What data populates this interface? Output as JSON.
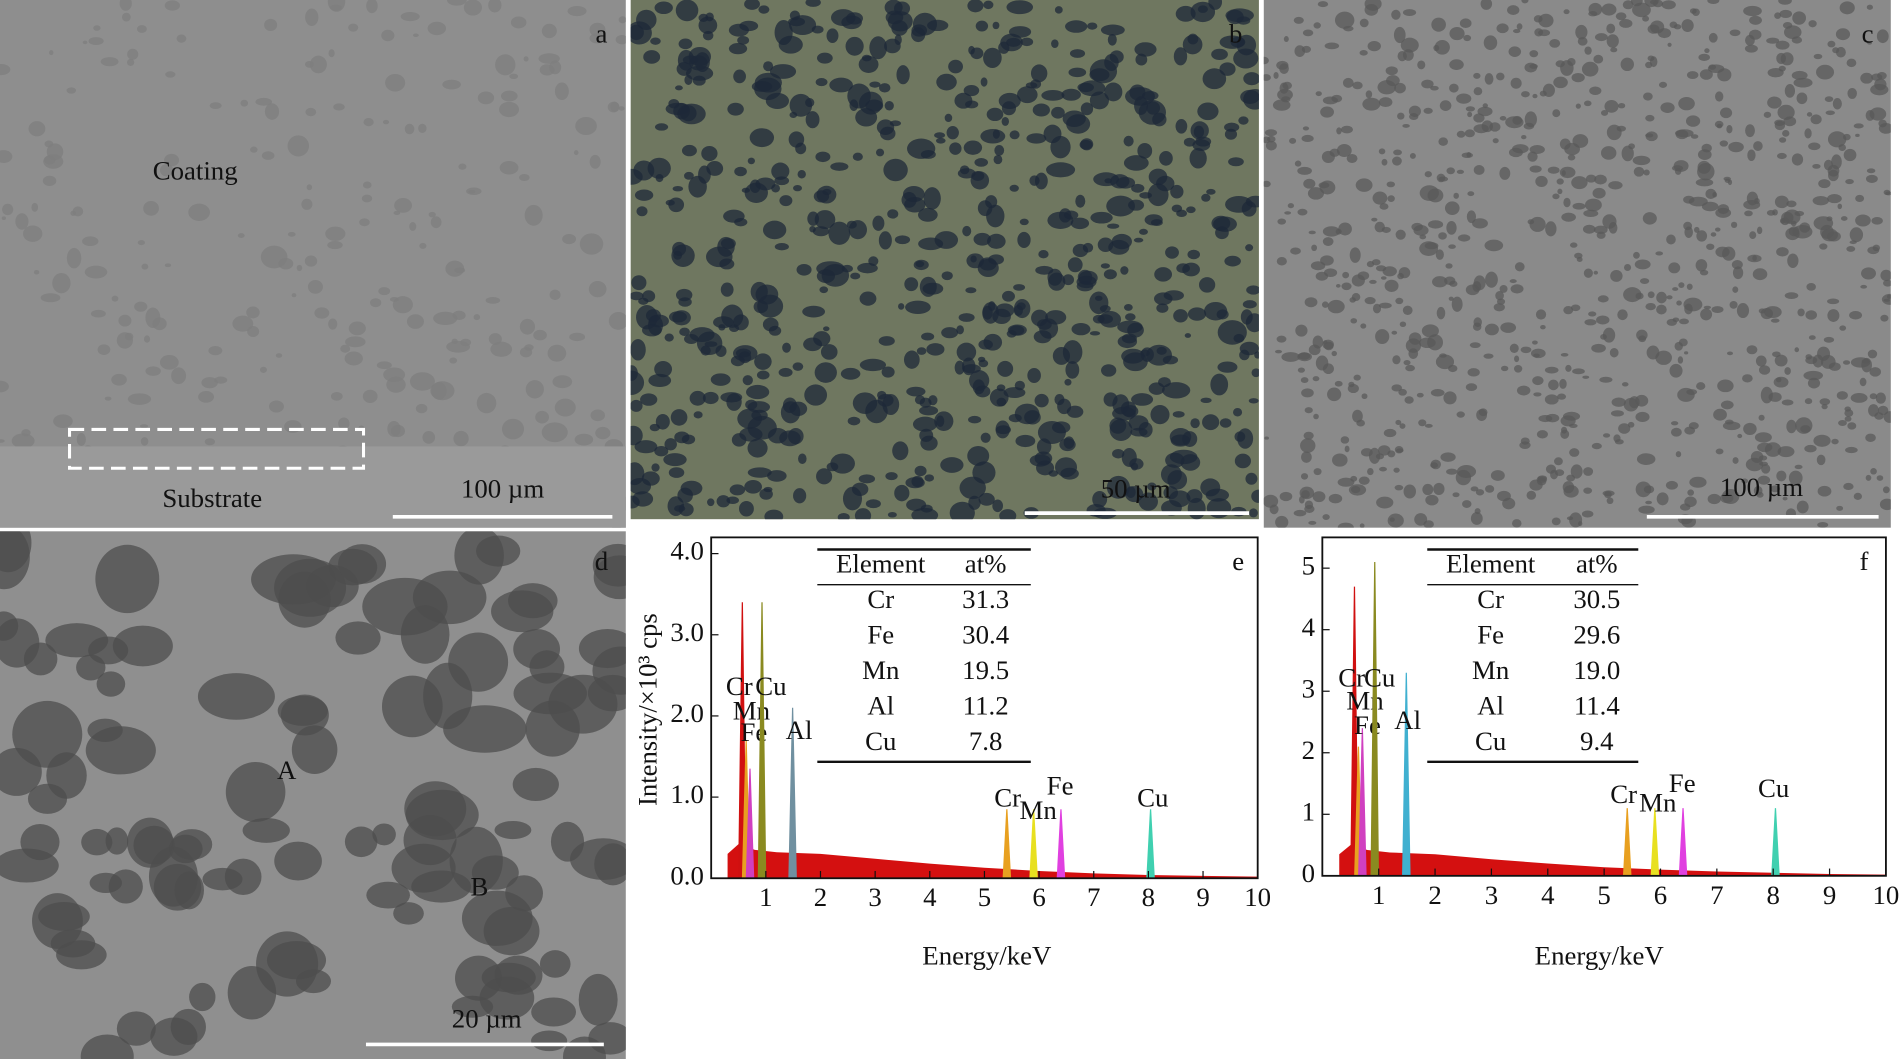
{
  "micrographs": [
    {
      "label": "a",
      "texts": [
        "Coating",
        "Substrate"
      ],
      "scale_bar": "100 µm"
    },
    {
      "label": "b",
      "scale_bar": "50 µm"
    },
    {
      "label": "c",
      "scale_bar": "100 µm"
    },
    {
      "label": "d",
      "texts": [
        "A",
        "B"
      ],
      "scale_bar": "20 µm"
    }
  ],
  "chart_data": [
    {
      "type": "spectrum",
      "label": "e",
      "y_label": "Intensity/×10³ cps",
      "x_label": "Energy/keV",
      "xlim": [
        0,
        10
      ],
      "xticks": [
        1,
        2,
        3,
        4,
        5,
        6,
        7,
        8,
        9,
        10
      ],
      "ylim": [
        0,
        4.2
      ],
      "yticks": [
        {
          "value": 0,
          "label": "0.0"
        },
        {
          "value": 1,
          "label": "1.0"
        },
        {
          "value": 2,
          "label": "2.0"
        },
        {
          "value": 3,
          "label": "3.0"
        },
        {
          "value": 4,
          "label": "4.0"
        }
      ],
      "peaks": {
        "labels": [
          "Cr",
          "Mn",
          "Fe",
          "Cu",
          "Al",
          "Cr",
          "Mn",
          "Fe",
          "Cu"
        ],
        "x": [
          0.57,
          0.64,
          0.71,
          0.93,
          1.49,
          5.41,
          5.9,
          6.4,
          8.04
        ],
        "values": [
          3.4,
          1.7,
          1.35,
          3.4,
          2.1,
          0.85,
          0.85,
          0.85,
          0.85
        ],
        "colors": [
          "#d01010",
          "#e8a020",
          "#d040c0",
          "#8a8a20",
          "#7090a0",
          "#e8a020",
          "#e8e020",
          "#e040e0",
          "#40d0b0"
        ]
      },
      "background": {
        "x": [
          0.3,
          0.5,
          0.8,
          1.2,
          2,
          3,
          4,
          5,
          6,
          7,
          8,
          9,
          10
        ],
        "values": [
          0.3,
          0.42,
          0.35,
          0.32,
          0.3,
          0.24,
          0.18,
          0.13,
          0.09,
          0.06,
          0.04,
          0.03,
          0.02
        ],
        "color": "#d41010"
      },
      "table": {
        "header": [
          "Element",
          "at%"
        ],
        "rows": [
          [
            "Cr",
            "31.3"
          ],
          [
            "Fe",
            "30.4"
          ],
          [
            "Mn",
            "19.5"
          ],
          [
            "Al",
            "11.2"
          ],
          [
            "Cu",
            "7.8"
          ]
        ]
      }
    },
    {
      "type": "spectrum",
      "label": "f",
      "x_label": "Energy/keV",
      "xlim": [
        0,
        10
      ],
      "xticks": [
        1,
        2,
        3,
        4,
        5,
        6,
        7,
        8,
        9,
        10
      ],
      "ylim": [
        0,
        5.5
      ],
      "yticks": [
        0,
        1,
        2,
        3,
        4,
        5
      ],
      "peaks": {
        "labels": [
          "Cr",
          "Mn",
          "Fe",
          "Cu",
          "Al",
          "Cr",
          "Mn",
          "Fe",
          "Cu"
        ],
        "x": [
          0.57,
          0.64,
          0.71,
          0.93,
          1.49,
          5.41,
          5.9,
          6.4,
          8.04
        ],
        "values": [
          4.7,
          2.1,
          2.4,
          5.1,
          3.3,
          1.1,
          1.1,
          1.1,
          1.1
        ],
        "colors": [
          "#d01010",
          "#e8a020",
          "#d040c0",
          "#8a8a20",
          "#40b0d0",
          "#e8a020",
          "#e8e020",
          "#e040e0",
          "#40d0b0"
        ]
      },
      "background": {
        "x": [
          0.3,
          0.5,
          0.8,
          1.2,
          2,
          3,
          4,
          5,
          6,
          7,
          8,
          9,
          10
        ],
        "values": [
          0.35,
          0.5,
          0.42,
          0.38,
          0.35,
          0.27,
          0.2,
          0.14,
          0.1,
          0.07,
          0.05,
          0.03,
          0.02
        ],
        "color": "#d41010"
      },
      "table": {
        "header": [
          "Element",
          "at%"
        ],
        "rows": [
          [
            "Cr",
            "30.5"
          ],
          [
            "Fe",
            "29.6"
          ],
          [
            "Mn",
            "19.0"
          ],
          [
            "Al",
            "11.4"
          ],
          [
            "Cu",
            "9.4"
          ]
        ]
      }
    }
  ]
}
